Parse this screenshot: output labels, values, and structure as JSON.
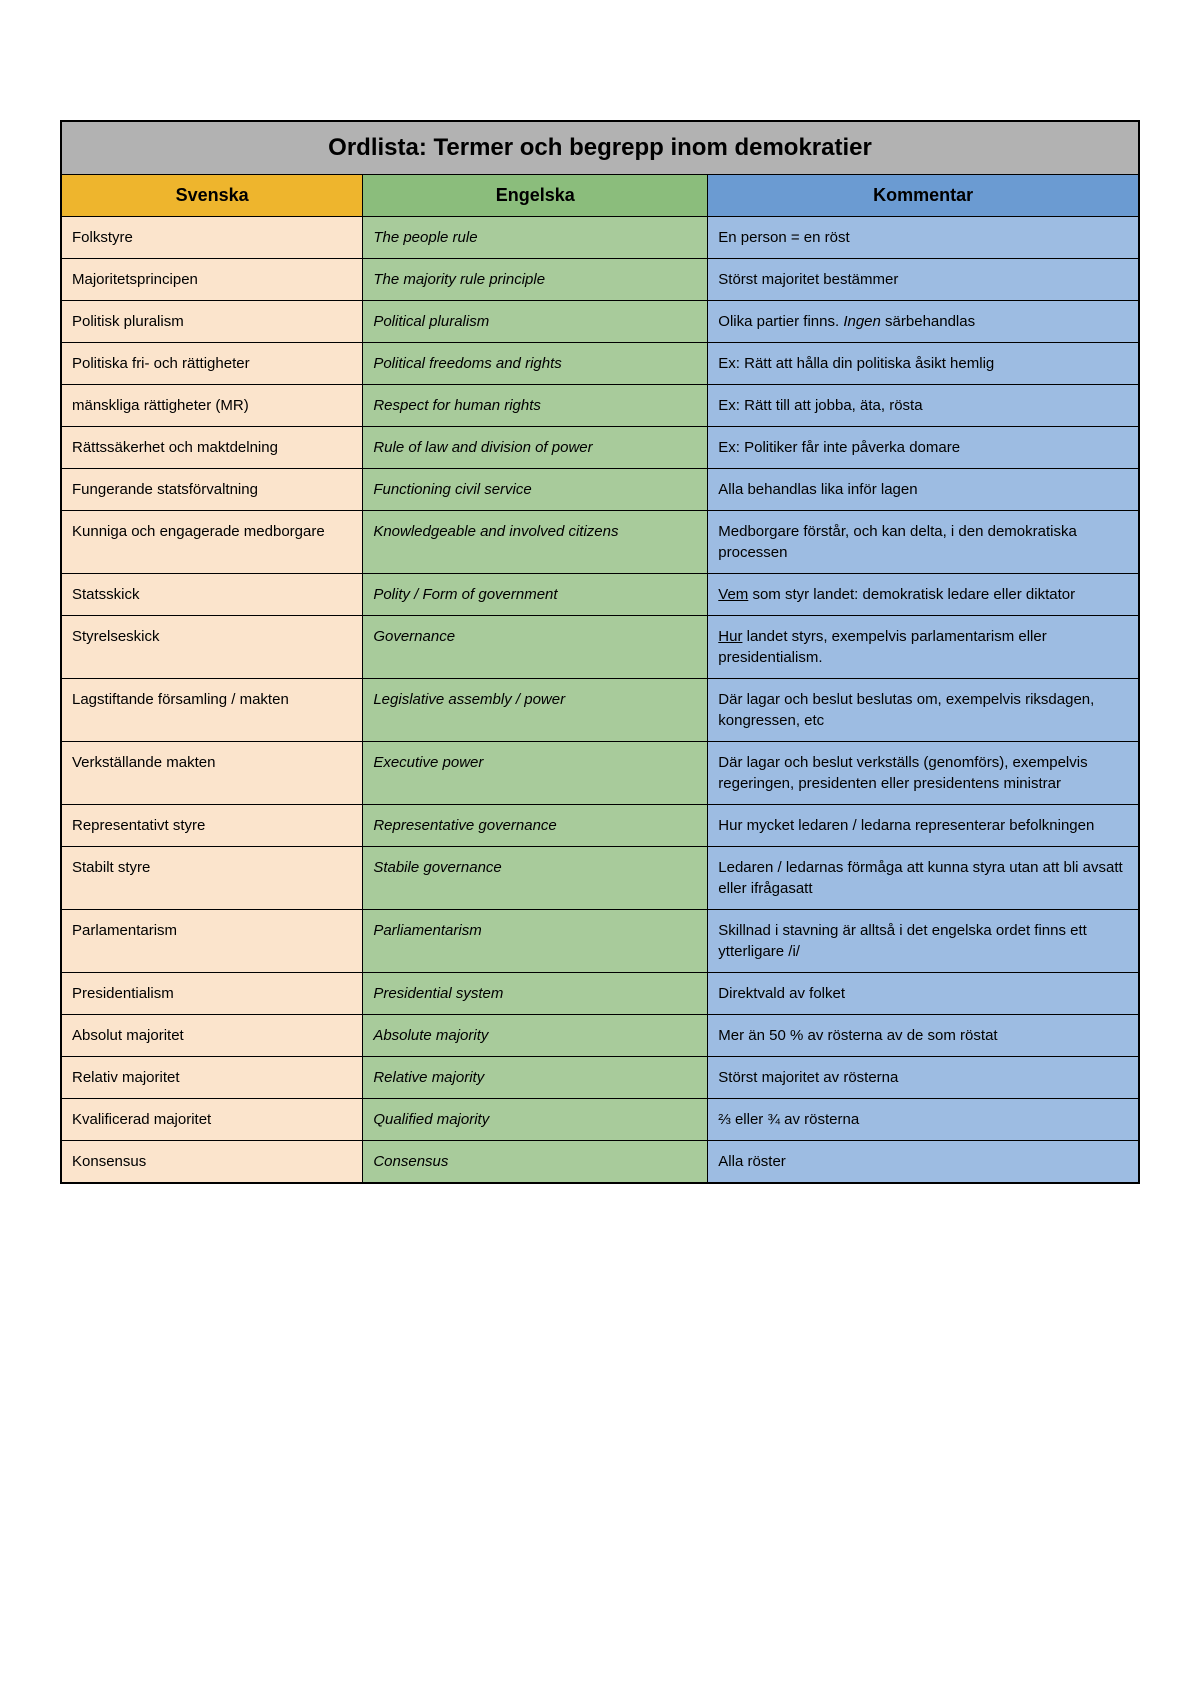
{
  "table": {
    "title": "Ordlista: Termer och begrepp inom demokratier",
    "columns": [
      "Svenska",
      "Engelska",
      "Kommentar"
    ],
    "colors": {
      "title_bg": "#b2b2b2",
      "svenska_header_bg": "#eeb52d",
      "engelska_header_bg": "#8bbd7c",
      "kommentar_header_bg": "#6b9bd2",
      "svenska_cell_bg": "#fbe4cc",
      "engelska_cell_bg": "#a8cb9b",
      "kommentar_cell_bg": "#9dbce2",
      "border_color": "#000000"
    },
    "fonts": {
      "title_size": 24,
      "header_size": 18,
      "body_size": 15,
      "family": "Arial"
    },
    "column_widths": [
      "28%",
      "32%",
      "40%"
    ],
    "rows": [
      {
        "sv": "Folkstyre",
        "en": "The people rule",
        "comment_html": "En person = en röst"
      },
      {
        "sv": "Majoritetsprincipen",
        "en": "The majority rule principle",
        "comment_html": "Störst majoritet bestämmer"
      },
      {
        "sv": "Politisk pluralism",
        "en": "Political pluralism",
        "comment_html": "Olika partier finns. <span class='ital'>Ingen</span> särbehandlas"
      },
      {
        "sv": "Politiska fri- och rättigheter",
        "en": "Political freedoms and rights",
        "comment_html": "Ex: Rätt att hålla din politiska åsikt hemlig"
      },
      {
        "sv": "mänskliga rättigheter (MR)",
        "en": "Respect for human rights",
        "comment_html": "Ex: Rätt till att jobba, äta, rösta"
      },
      {
        "sv": "Rättssäkerhet och maktdelning",
        "en": "Rule of law and division of power",
        "comment_html": "Ex: Politiker får inte påverka domare"
      },
      {
        "sv": "Fungerande statsförvaltning",
        "en": "Functioning civil service",
        "comment_html": "Alla behandlas lika inför lagen"
      },
      {
        "sv": "Kunniga och engagerade medborgare",
        "en": "Knowledgeable and involved citizens",
        "comment_html": "Medborgare förstår, och kan delta, i den demokratiska processen"
      },
      {
        "sv": "Statsskick",
        "en": "Polity / Form of government",
        "comment_html": "<span class='uline'>Vem</span> som styr landet: demokratisk ledare eller diktator"
      },
      {
        "sv": "Styrelseskick",
        "en": "Governance",
        "comment_html": "<span class='uline'>Hur</span> landet styrs, exempelvis parlamentarism eller presidentialism."
      },
      {
        "sv": "Lagstiftande församling / makten",
        "en": "Legislative assembly / power",
        "comment_html": "Där lagar och beslut beslutas om, exempelvis riksdagen, kongressen, etc"
      },
      {
        "sv": "Verkställande makten",
        "en": "Executive power",
        "comment_html": "Där lagar och beslut verkställs (genomförs), exempelvis regeringen, presidenten eller presidentens ministrar"
      },
      {
        "sv": "Representativt styre",
        "en": "Representative governance",
        "comment_html": "Hur mycket ledaren / ledarna representerar befolkningen"
      },
      {
        "sv": "Stabilt styre",
        "en": "Stabile governance",
        "comment_html": "Ledaren / ledarnas förmåga att kunna styra utan att bli avsatt eller ifrågasatt"
      },
      {
        "sv": "Parlamentarism",
        "en": "Parliamentarism",
        "comment_html": "Skillnad i stavning är alltså i det engelska ordet finns ett ytterligare /i/"
      },
      {
        "sv": "Presidentialism",
        "en": "Presidential system",
        "comment_html": "Direktvald av folket"
      },
      {
        "sv": "Absolut majoritet",
        "en": "Absolute majority",
        "comment_html": "Mer än 50 % av rösterna av de som röstat"
      },
      {
        "sv": "Relativ majoritet",
        "en": "Relative majority",
        "comment_html": "Störst majoritet av rösterna"
      },
      {
        "sv": "Kvalificerad majoritet",
        "en": "Qualified majority",
        "comment_html": "⅔ eller ¾ av rösterna"
      },
      {
        "sv": "Konsensus",
        "en": "Consensus",
        "comment_html": "Alla röster"
      }
    ]
  }
}
